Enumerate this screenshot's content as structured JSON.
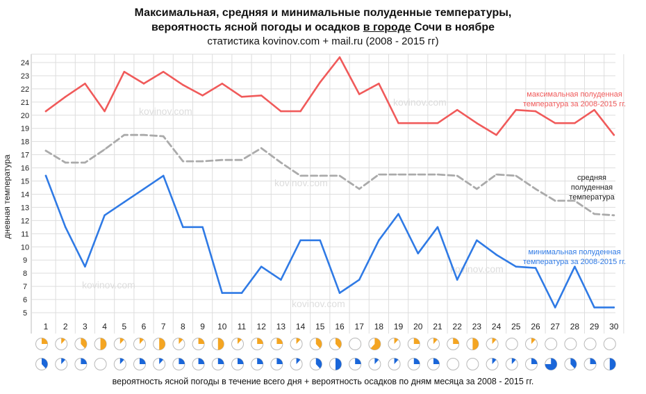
{
  "header": {
    "title_line1": "Максимальная, средняя и минимальные полуденные температуры,",
    "title_line2_pre": "вероятность ясной погоды и осадков ",
    "title_line2_highlight": "в городе",
    "title_line2_post": " Сочи в ноябре",
    "subtitle": "статистика kovinov.com + mail.ru (2008 - 2015 гг)"
  },
  "footer": {
    "caption": "вероятность ясной погоды в течение всего дня + вероятность осадков по дням месяца за 2008 - 2015 гг."
  },
  "watermark": "kovinov.com",
  "colors": {
    "max": "#f05a5a",
    "avg": "#aaaaaa",
    "min": "#2f7ae5",
    "sun": "#f4a522",
    "rain": "#1a66d9",
    "grid": "#dddddd"
  },
  "chart_data": {
    "type": "line",
    "ylabel": "дневная температура",
    "ylim": [
      4.5,
      24.8
    ],
    "y_ticks": [
      5,
      6,
      7,
      8,
      9,
      10,
      11,
      12,
      13,
      14,
      15,
      16,
      17,
      18,
      19,
      20,
      21,
      22,
      23,
      24
    ],
    "x": [
      1,
      2,
      3,
      4,
      5,
      6,
      7,
      8,
      9,
      10,
      11,
      12,
      13,
      14,
      15,
      16,
      17,
      18,
      19,
      20,
      21,
      22,
      23,
      24,
      25,
      26,
      27,
      28,
      29,
      30
    ],
    "series": [
      {
        "key": "max",
        "name": "максимальная полуденная температура за 2008-2015 гг.",
        "style": "solid",
        "values": [
          20.3,
          21.4,
          22.4,
          20.3,
          23.3,
          22.4,
          23.3,
          22.3,
          21.5,
          22.4,
          21.4,
          21.5,
          20.3,
          20.3,
          22.5,
          24.4,
          21.6,
          22.4,
          19.4,
          19.4,
          19.4,
          20.4,
          19.4,
          18.5,
          20.4,
          20.3,
          19.4,
          19.4,
          20.4,
          18.5
        ]
      },
      {
        "key": "avg",
        "name": "средняя полуденная температура",
        "style": "dashed",
        "values": [
          17.3,
          16.4,
          16.4,
          17.4,
          18.5,
          18.5,
          18.4,
          16.5,
          16.5,
          16.6,
          16.6,
          17.5,
          16.4,
          15.4,
          15.4,
          15.4,
          14.4,
          15.5,
          15.5,
          15.5,
          15.5,
          15.4,
          14.4,
          15.5,
          15.4,
          14.4,
          13.5,
          13.5,
          12.5,
          12.4
        ]
      },
      {
        "key": "min",
        "name": "минимальная полуденная температура за 2008-2015 гг.",
        "style": "solid",
        "values": [
          15.4,
          11.5,
          8.5,
          12.4,
          13.4,
          14.4,
          15.4,
          11.5,
          11.5,
          6.5,
          6.5,
          8.5,
          7.5,
          10.5,
          10.5,
          6.5,
          7.5,
          10.5,
          12.5,
          9.5,
          11.5,
          7.5,
          10.5,
          9.4,
          8.5,
          8.4,
          5.4,
          8.5,
          5.4,
          5.4
        ]
      }
    ],
    "series_labels": [
      {
        "key": "max",
        "lines": [
          "максимальная полуденная",
          "температура за 2008-2015 гг."
        ]
      },
      {
        "key": "avg",
        "lines": [
          "средняя",
          "полуденная",
          "температура"
        ]
      },
      {
        "key": "min",
        "lines": [
          "минимальная полуденная",
          "температура за 2008-2015 гг."
        ]
      }
    ],
    "clear_weather_probability": [
      0.25,
      0.12,
      0.38,
      0.5,
      0.12,
      0.12,
      0.5,
      0.12,
      0.25,
      0.5,
      0.12,
      0.25,
      0.25,
      0.12,
      0.38,
      0.38,
      0.0,
      0.62,
      0.12,
      0.25,
      0.12,
      0.25,
      0.5,
      0.12,
      0.0,
      0.12,
      0.0,
      0.0,
      0.0,
      0.0
    ],
    "precipitation_probability": [
      0.38,
      0.12,
      0.25,
      0.0,
      0.12,
      0.25,
      0.12,
      0.25,
      0.25,
      0.25,
      0.25,
      0.25,
      0.25,
      0.12,
      0.38,
      0.5,
      0.25,
      0.12,
      0.12,
      0.25,
      0.25,
      0.0,
      0.0,
      0.12,
      0.12,
      0.25,
      0.75,
      0.38,
      0.25,
      0.5
    ]
  }
}
